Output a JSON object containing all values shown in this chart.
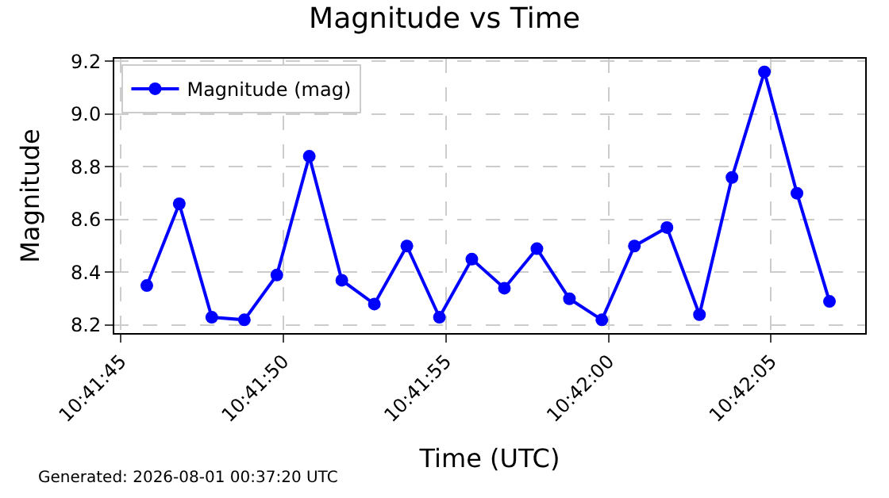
{
  "chart_data": {
    "type": "line",
    "title": "Magnitude vs Time",
    "xlabel": "Time (UTC)",
    "ylabel": "Magnitude",
    "x": [
      10.696056,
      10.696333,
      10.696611,
      10.696889,
      10.697167,
      10.697444,
      10.697722,
      10.698,
      10.698278,
      10.698556,
      10.698833,
      10.699111,
      10.699389,
      10.699667,
      10.699944,
      10.700222,
      10.7005,
      10.700778,
      10.701056,
      10.701333,
      10.701611,
      10.701889
    ],
    "series": [
      {
        "name": "Magnitude (mag)",
        "color": "#0000ff",
        "values": [
          8.35,
          8.66,
          8.23,
          8.22,
          8.39,
          8.84,
          8.37,
          8.28,
          8.5,
          8.23,
          8.45,
          8.34,
          8.49,
          8.3,
          8.22,
          8.5,
          8.57,
          8.24,
          8.76,
          9.16,
          8.7,
          8.29
        ]
      }
    ],
    "xlim": [
      10.695778,
      10.702194
    ],
    "xticks": [
      {
        "value": 10.695833,
        "label": "10:41:45"
      },
      {
        "value": 10.697222,
        "label": "10:41:50"
      },
      {
        "value": 10.698611,
        "label": "10:41:55"
      },
      {
        "value": 10.7,
        "label": "10:42:00"
      },
      {
        "value": 10.701389,
        "label": "10:42:05"
      }
    ],
    "ylim": [
      8.17,
      9.21
    ],
    "yticks": [
      8.2,
      8.4,
      8.6,
      8.8,
      {
        "value": 9.0,
        "label": "9.0"
      },
      9.2
    ],
    "grid": true,
    "legend": "top left",
    "marker": "circle",
    "line_style": "solid",
    "annotations": [
      "Generated: 2026-08-01 00:37:20 UTC"
    ]
  }
}
